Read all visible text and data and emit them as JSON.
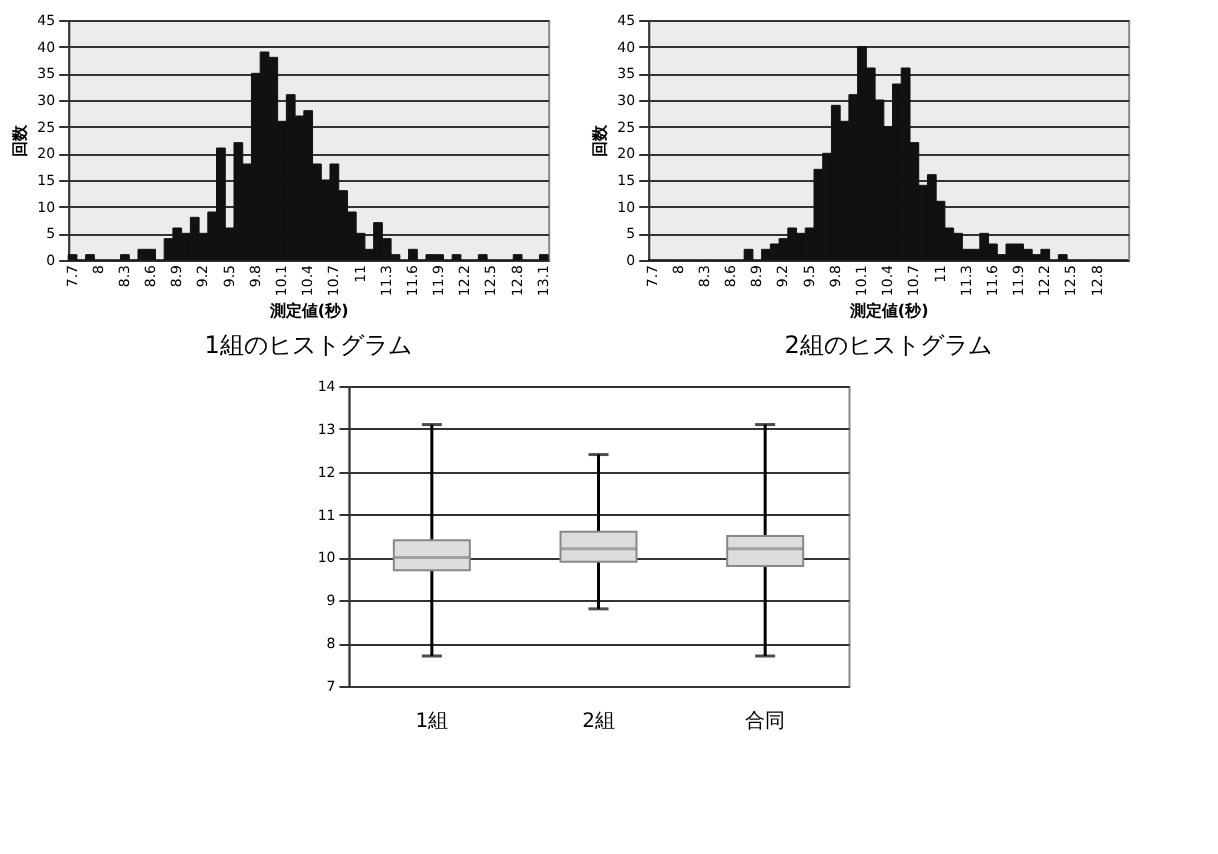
{
  "chart_data": [
    {
      "type": "bar",
      "title": "1組のヒストグラム",
      "xlabel": "測定値(秒)",
      "ylabel": "回数",
      "color": "#111111",
      "ylim": [
        0,
        45
      ],
      "yticks": [
        0,
        5,
        10,
        15,
        20,
        25,
        30,
        35,
        40,
        45
      ],
      "grid": "y",
      "categories": [
        "7.7",
        null,
        null,
        "8",
        null,
        null,
        "8.3",
        null,
        null,
        "8.6",
        null,
        null,
        "8.9",
        null,
        null,
        "9.2",
        null,
        null,
        "9.5",
        null,
        null,
        "9.8",
        null,
        null,
        "10.1",
        null,
        null,
        "10.4",
        null,
        null,
        "10.7",
        null,
        null,
        "11",
        null,
        null,
        "11.3",
        null,
        null,
        "11.6",
        null,
        null,
        "11.9",
        null,
        null,
        "12.2",
        null,
        null,
        "12.5",
        null,
        null,
        "12.8",
        null,
        null,
        "13.1"
      ],
      "values": [
        1,
        0,
        1,
        0,
        0,
        0,
        1,
        0,
        2,
        2,
        0,
        4,
        6,
        5,
        8,
        5,
        9,
        21,
        6,
        22,
        18,
        35,
        39,
        38,
        26,
        31,
        27,
        28,
        18,
        15,
        18,
        13,
        9,
        5,
        2,
        7,
        4,
        1,
        0,
        2,
        0,
        1,
        1,
        0,
        1,
        0,
        0,
        1,
        0,
        0,
        0,
        1,
        0,
        0,
        1
      ]
    },
    {
      "type": "bar",
      "title": "2組のヒストグラム",
      "xlabel": "測定値(秒)",
      "ylabel": "回数",
      "color": "#111111",
      "ylim": [
        0,
        45
      ],
      "yticks": [
        0,
        5,
        10,
        15,
        20,
        25,
        30,
        35,
        40,
        45
      ],
      "grid": "y",
      "categories": [
        "7.7",
        null,
        null,
        "8",
        null,
        null,
        "8.3",
        null,
        null,
        "8.6",
        null,
        null,
        "8.9",
        null,
        null,
        "9.2",
        null,
        null,
        "9.5",
        null,
        null,
        "9.8",
        null,
        null,
        "10.1",
        null,
        null,
        "10.4",
        null,
        null,
        "10.7",
        null,
        null,
        "11",
        null,
        null,
        "11.3",
        null,
        null,
        "11.6",
        null,
        null,
        "11.9",
        null,
        null,
        "12.2",
        null,
        null,
        "12.5",
        null,
        null,
        "12.8",
        null,
        null,
        null
      ],
      "values": [
        0,
        0,
        0,
        0,
        0,
        0,
        0,
        0,
        0,
        0,
        0,
        2,
        0,
        2,
        3,
        4,
        6,
        5,
        6,
        17,
        20,
        29,
        26,
        31,
        40,
        36,
        30,
        25,
        33,
        36,
        22,
        14,
        16,
        11,
        6,
        5,
        2,
        2,
        5,
        3,
        1,
        3,
        3,
        2,
        1,
        2,
        0,
        1,
        0,
        0,
        0,
        0,
        0,
        0,
        0
      ]
    },
    {
      "type": "box",
      "categories": [
        "1組",
        "2組",
        "合同"
      ],
      "ylim": [
        7,
        14
      ],
      "yticks": [
        7,
        8,
        9,
        10,
        11,
        12,
        13,
        14
      ],
      "grid": "y",
      "boxes": [
        {
          "low": 7.7,
          "q1": 9.7,
          "median": 10.0,
          "q3": 10.4,
          "high": 13.1
        },
        {
          "low": 8.8,
          "q1": 9.9,
          "median": 10.2,
          "q3": 10.6,
          "high": 12.4
        },
        {
          "low": 7.7,
          "q1": 9.8,
          "median": 10.2,
          "q3": 10.5,
          "high": 13.1
        }
      ]
    }
  ]
}
